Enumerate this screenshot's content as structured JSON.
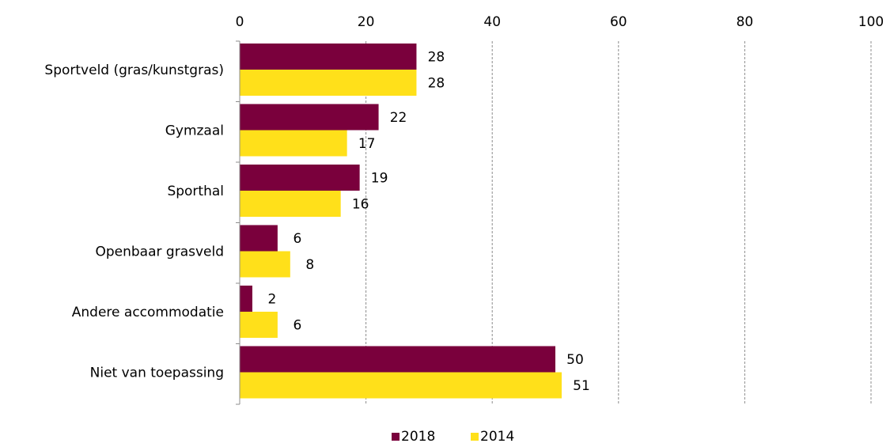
{
  "chart_data": {
    "type": "bar",
    "orientation": "horizontal",
    "categories": [
      "Sportveld (gras/kunstgras)",
      "Gymzaal",
      "Sporthal",
      "Openbaar grasveld",
      "Andere accommodatie",
      "Niet van toepassing"
    ],
    "series": [
      {
        "name": "2018",
        "color": "#7a003c",
        "values": [
          28,
          22,
          19,
          6,
          2,
          50
        ]
      },
      {
        "name": "2014",
        "color": "#ffe01a",
        "values": [
          28,
          17,
          16,
          8,
          6,
          51
        ]
      }
    ],
    "xlim": [
      0,
      100
    ],
    "x_ticks": [
      0,
      20,
      40,
      60,
      80,
      100
    ],
    "x_axis_position": "top",
    "grid": "vertical-dashed",
    "legend_position": "bottom-center",
    "data_labels": true
  }
}
